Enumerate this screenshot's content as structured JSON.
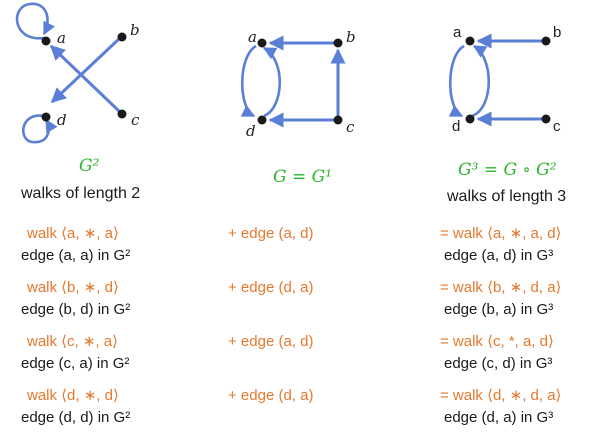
{
  "graphs": {
    "g2": {
      "nodes": [
        "a",
        "b",
        "c",
        "d"
      ]
    },
    "g1": {
      "nodes": [
        "a",
        "b",
        "c",
        "d"
      ]
    },
    "g3": {
      "nodes": [
        "a",
        "b",
        "c",
        "d"
      ]
    }
  },
  "headers": {
    "g2_title": "G²",
    "g2_subtitle": "walks of length 2",
    "g1_title": "G = G¹",
    "g3_title": "G³ = G ∘ G²",
    "g3_subtitle": "walks of length 3"
  },
  "rows": [
    {
      "walk2": "walk ⟨a, ∗, a⟩",
      "edge2": "edge (a, a) in G²",
      "edge1": "+ edge (a, d)",
      "walk3": "= walk ⟨a, ∗, a, d⟩",
      "edge3": "edge (a, d) in G³"
    },
    {
      "walk2": "walk ⟨b, ∗, d⟩",
      "edge2": "edge (b, d) in G²",
      "edge1": "+ edge (d, a)",
      "walk3": "= walk ⟨b, ∗, d, a⟩",
      "edge3": "edge (b, a) in G³"
    },
    {
      "walk2": "walk ⟨c, ∗, a⟩",
      "edge2": "edge (c, a) in G²",
      "edge1": "+ edge (a, d)",
      "walk3": "= walk ⟨c, *, a, d⟩",
      "edge3": "edge (c, d) in G³"
    },
    {
      "walk2": "walk ⟨d, ∗, d⟩",
      "edge2": "edge (d, d) in G²",
      "edge1": "+ edge (d, a)",
      "walk3": "= walk ⟨d, ∗, d, a⟩",
      "edge3": "edge (d, a) in G³"
    }
  ],
  "colors": {
    "edge": "#5a7fd6",
    "node": "#1a1a1a",
    "green": "#2bb52b",
    "orange": "#e5782e",
    "text": "#1a1a1a"
  }
}
